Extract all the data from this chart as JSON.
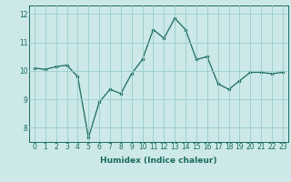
{
  "x": [
    0,
    1,
    2,
    3,
    4,
    5,
    6,
    7,
    8,
    9,
    10,
    11,
    12,
    13,
    14,
    15,
    16,
    17,
    18,
    19,
    20,
    21,
    22,
    23
  ],
  "y": [
    10.1,
    10.05,
    10.15,
    10.2,
    9.8,
    7.65,
    8.9,
    9.35,
    9.2,
    9.9,
    10.4,
    11.45,
    11.15,
    11.85,
    11.45,
    10.4,
    10.5,
    9.55,
    9.35,
    9.65,
    9.95,
    9.95,
    9.9,
    9.95
  ],
  "line_color": "#1a6b5e",
  "marker": "o",
  "markersize": 2.0,
  "linewidth": 0.9,
  "bg_color": "#cce8e8",
  "grid_color": "#99cccc",
  "xlabel": "Humidex (Indice chaleur)",
  "tick_fontsize": 5.5,
  "xlabel_fontsize": 6.5,
  "xlim": [
    -0.5,
    23.5
  ],
  "ylim": [
    7.5,
    12.3
  ],
  "yticks": [
    8,
    9,
    10,
    11,
    12
  ],
  "xticks": [
    0,
    1,
    2,
    3,
    4,
    5,
    6,
    7,
    8,
    9,
    10,
    11,
    12,
    13,
    14,
    15,
    16,
    17,
    18,
    19,
    20,
    21,
    22,
    23
  ]
}
